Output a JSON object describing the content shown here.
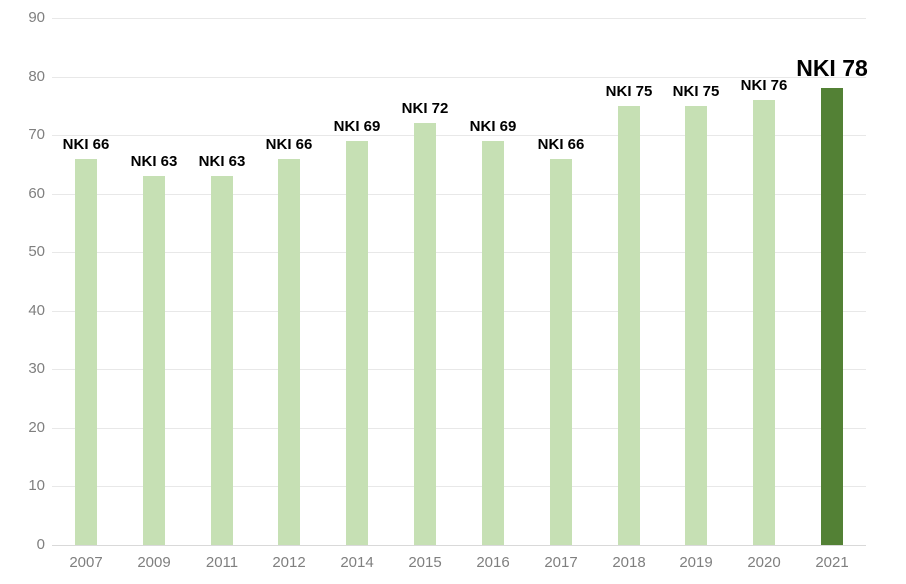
{
  "chart_data": {
    "type": "bar",
    "title": "",
    "xlabel": "",
    "ylabel": "",
    "categories": [
      "2007",
      "2009",
      "2011",
      "2012",
      "2014",
      "2015",
      "2016",
      "2017",
      "2018",
      "2019",
      "2020",
      "2021"
    ],
    "values": [
      66,
      63,
      63,
      66,
      69,
      72,
      69,
      66,
      75,
      75,
      76,
      78
    ],
    "bar_labels": [
      "NKI 66",
      "NKI 63",
      "NKI 63",
      "NKI 66",
      "NKI 69",
      "NKI 72",
      "NKI 69",
      "NKI 66",
      "NKI 75",
      "NKI 75",
      "NKI 76",
      "NKI 78"
    ],
    "highlight_index": 11,
    "ylim": [
      0,
      90
    ],
    "ytick_step": 10,
    "ytick_labels": [
      "0",
      "10",
      "20",
      "30",
      "40",
      "50",
      "60",
      "70",
      "80",
      "90"
    ],
    "grid": true,
    "legend": false,
    "colors": {
      "bar": "#c6e0b4",
      "bar_highlight": "#538135",
      "gridline": "#e8e8e8",
      "axis_line": "#d9d9d9",
      "tick_label": "#7f7f7f",
      "bar_label": "#000000",
      "background": "#ffffff"
    }
  }
}
